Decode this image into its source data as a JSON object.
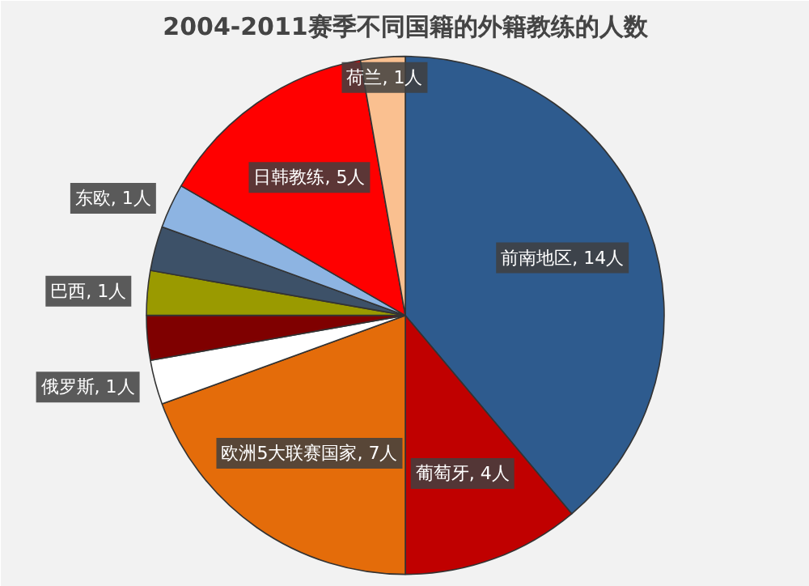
{
  "chart_data": {
    "type": "pie",
    "title": "2004-2011赛季不同国籍的外籍教练的人数",
    "categories": [
      "前南地区",
      "葡萄牙",
      "欧洲5大联赛国家",
      "俄罗斯",
      null,
      "巴西",
      null,
      "东欧",
      "日韩教练",
      "荷兰"
    ],
    "values": [
      14,
      4,
      7,
      1,
      1,
      1,
      1,
      1,
      5,
      1
    ],
    "colors": [
      "#2e5b8e",
      "#c00000",
      "#e46c0a",
      "#ffffff",
      "#7f0000",
      "#9a9a00",
      "#3d5168",
      "#8db4e2",
      "#ff0000",
      "#fac090"
    ],
    "value_labels": [
      "14人",
      "4人",
      "7人",
      "1人",
      null,
      "1人",
      null,
      "1人",
      "5人",
      "1人"
    ]
  }
}
